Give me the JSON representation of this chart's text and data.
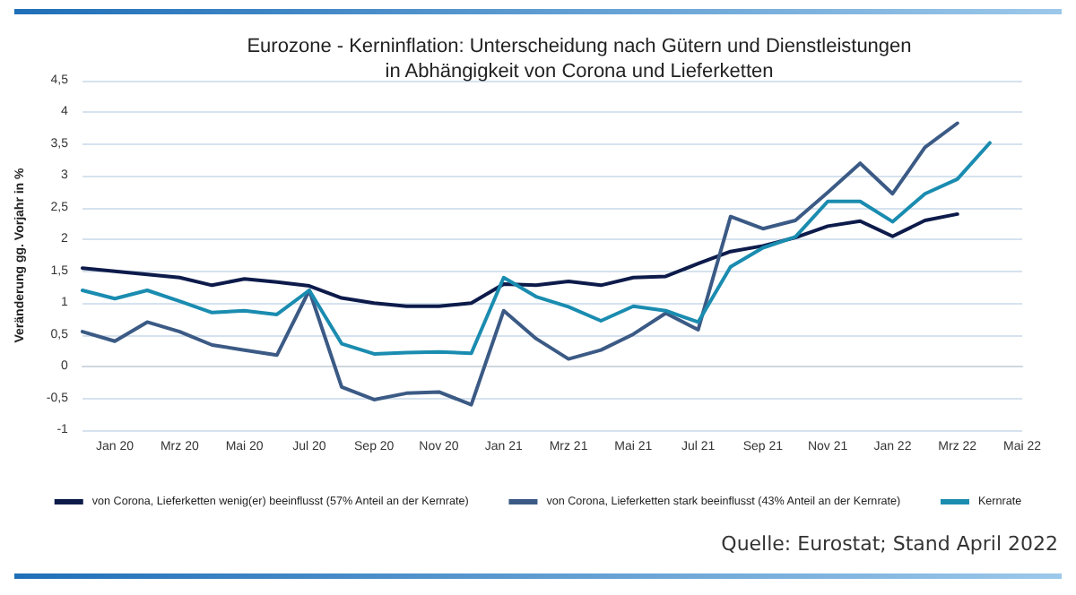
{
  "chart_data": {
    "type": "line",
    "title": "Eurozone - Kerninflation: Unterscheidung nach Gütern und Dienstleistungen\nin Abhängigkeit von Corona und Lieferketten",
    "ylabel": "Veränderung gg. Vorjahr in %",
    "categories": [
      null,
      "Jan 20",
      null,
      "Mrz 20",
      null,
      "Mai 20",
      null,
      "Jul 20",
      null,
      "Sep 20",
      null,
      "Nov 20",
      null,
      "Jan 21",
      null,
      "Mrz 21",
      null,
      "Mai 21",
      null,
      "Jul 21",
      null,
      "Sep 21",
      null,
      "Nov 21",
      null,
      "Jan 22",
      null,
      "Mrz 22",
      null,
      "Mai 22"
    ],
    "series": [
      {
        "name": "von Corona, Lieferketten wenig(er) beeinflusst (57% Anteil an der Kernrate)",
        "color": "#0d1b4b",
        "values": [
          1.55,
          1.5,
          1.45,
          1.4,
          1.28,
          1.38,
          1.33,
          1.27,
          1.08,
          1.0,
          0.95,
          0.95,
          1.0,
          1.3,
          1.28,
          1.34,
          1.28,
          1.4,
          1.42,
          1.62,
          1.81,
          1.9,
          2.03,
          2.21,
          2.29,
          2.05,
          2.3,
          2.4,
          null,
          null
        ]
      },
      {
        "name": "von Corona, Lieferketten stark beeinflusst (43% Anteil an der Kernrate)",
        "color": "#3b5a85",
        "values": [
          0.55,
          0.4,
          0.7,
          0.55,
          0.34,
          0.26,
          0.18,
          1.2,
          -0.32,
          -0.52,
          -0.42,
          -0.4,
          -0.6,
          0.88,
          0.44,
          0.12,
          0.26,
          0.51,
          0.84,
          0.58,
          2.36,
          2.17,
          2.3,
          2.74,
          3.2,
          2.72,
          3.45,
          3.83,
          null,
          null
        ]
      },
      {
        "name": "Kernrate",
        "color": "#1a8cb0",
        "values": [
          1.2,
          1.07,
          1.2,
          1.03,
          0.85,
          0.88,
          0.82,
          1.2,
          0.36,
          0.2,
          0.22,
          0.23,
          0.21,
          1.4,
          1.1,
          0.94,
          0.72,
          0.95,
          0.88,
          0.7,
          1.57,
          1.87,
          2.04,
          2.6,
          2.6,
          2.28,
          2.72,
          2.95,
          3.52,
          null
        ]
      }
    ],
    "ylim": [
      -1,
      4.5
    ],
    "yticks": [
      -1,
      {
        "value": -0.5,
        "label": "-0,5"
      },
      0,
      {
        "value": 0.5,
        "label": "0,5"
      },
      1,
      {
        "value": 1.5,
        "label": "1,5"
      },
      2,
      {
        "value": 2.5,
        "label": "2,5"
      },
      3,
      {
        "value": 3.5,
        "label": "3,5"
      },
      4,
      {
        "value": 4.5,
        "label": "4,5"
      }
    ],
    "grid": "y",
    "legend": "bottom",
    "marker": "none",
    "line_style": "solid",
    "annotations": [
      "Quelle: Eurostat; Stand April 2022"
    ]
  }
}
